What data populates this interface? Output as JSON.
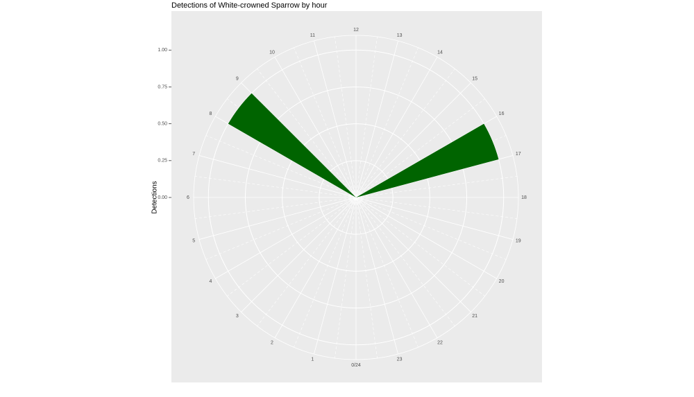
{
  "chart_data": {
    "type": "polar-bar",
    "title": "Detections of White-crowned Sparrow by hour",
    "y_label": "Detections",
    "x": [
      8.5,
      16.5
    ],
    "values": [
      1,
      1
    ],
    "bar_width": 1,
    "color": "#006400",
    "xlim": [
      0,
      24
    ],
    "xticks": [
      {
        "value": 0,
        "label": "0/24"
      },
      1,
      2,
      3,
      4,
      5,
      6,
      7,
      8,
      9,
      10,
      11,
      12,
      13,
      14,
      15,
      16,
      17,
      18,
      19,
      20,
      21,
      22,
      23
    ],
    "ylim": [
      0,
      1.1
    ],
    "yticks": [
      {
        "value": 0,
        "label": "0.00"
      },
      0.25,
      {
        "value": 0.5,
        "label": "0.50"
      },
      0.75,
      {
        "value": 1,
        "label": "1.00"
      }
    ],
    "grid": true
  }
}
